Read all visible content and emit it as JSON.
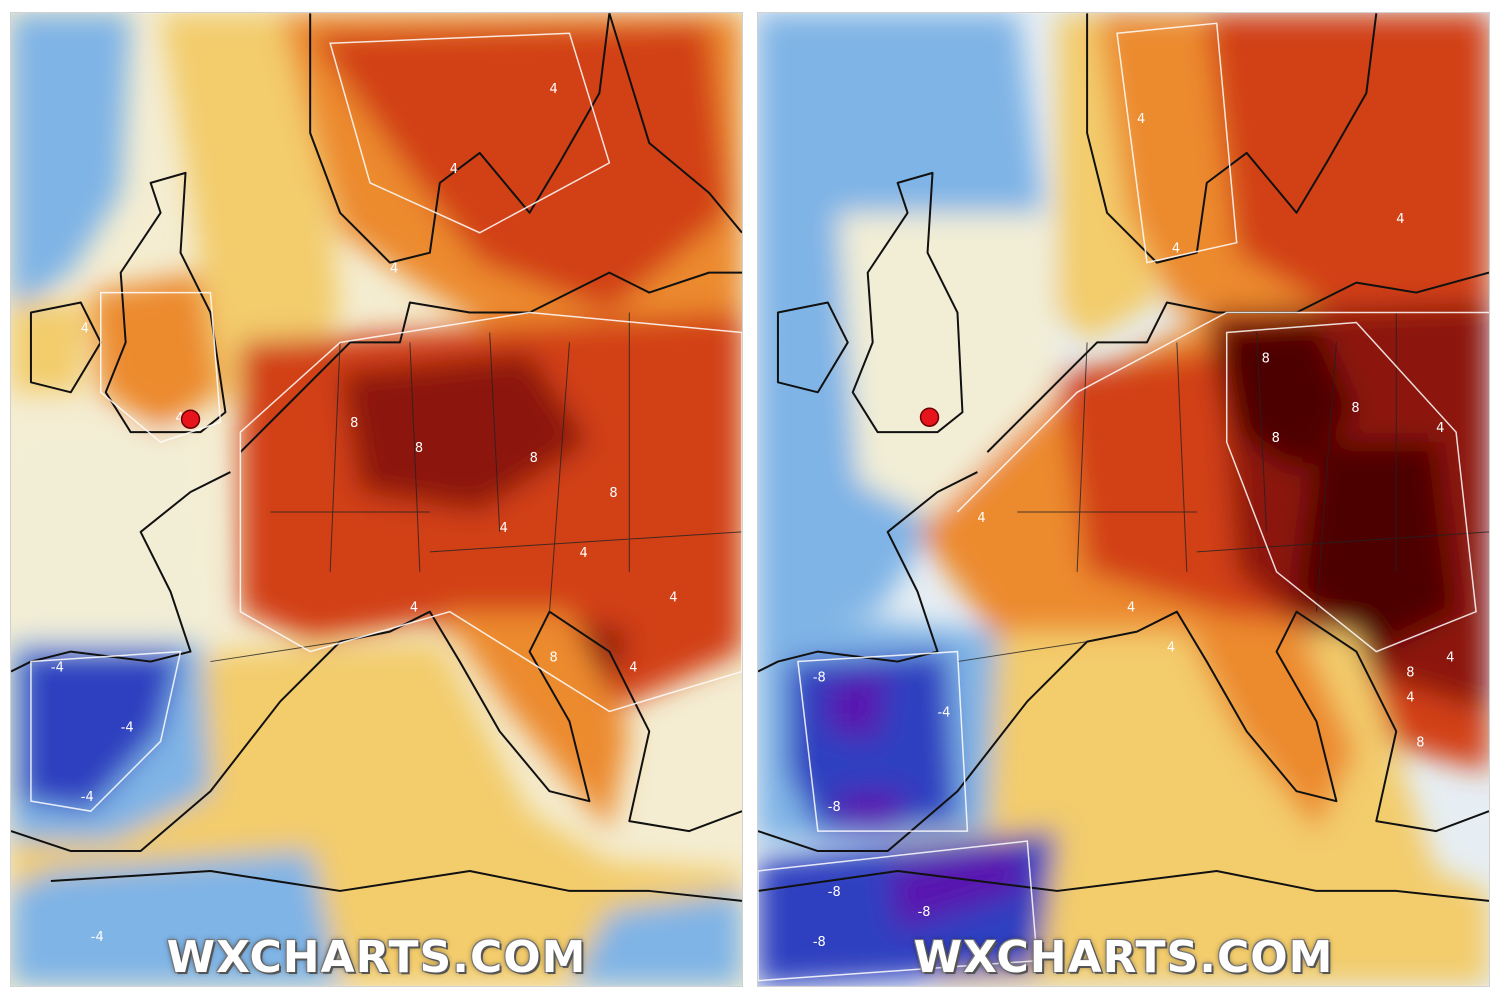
{
  "panels": [
    {
      "watermark": "WXCHARTS.COM",
      "contour_labels": [
        "4",
        "4",
        "4",
        "4",
        "8",
        "8",
        "8",
        "8",
        "4",
        "4",
        "4",
        "4",
        "8",
        "4",
        "-4",
        "-4",
        "-4",
        "-4",
        "4"
      ]
    },
    {
      "watermark": "WXCHARTS.COM",
      "contour_labels": [
        "4",
        "4",
        "4",
        "8",
        "8",
        "8",
        "8",
        "4",
        "4",
        "4",
        "4",
        "4",
        "4",
        "-8",
        "-8",
        "-8",
        "-8",
        "-8",
        "-4",
        "8"
      ]
    }
  ],
  "colors": {
    "cold_strong": "#5a16b0",
    "cold": "#2f3fc0",
    "cool": "#7fb4e6",
    "neutral": "#f2eed6",
    "mild": "#f3cc6c",
    "warm": "#ec8a2e",
    "hot": "#d23f14",
    "very_hot": "#8c1208",
    "extreme": "#4e0606",
    "marker": "#e8141c"
  },
  "legend": []
}
